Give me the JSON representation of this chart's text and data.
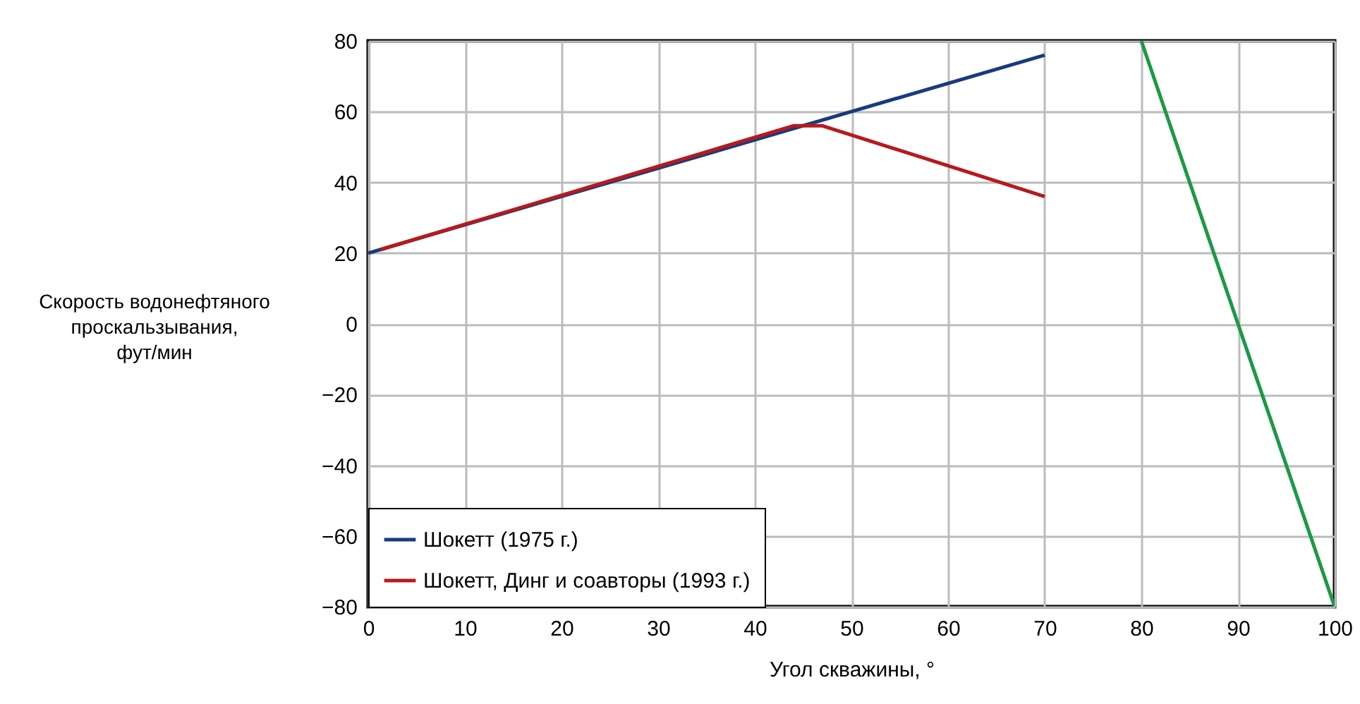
{
  "chart_data": {
    "type": "line",
    "xlabel": "Угол скважины, °",
    "ylabel": "Скорость водонефтяного проскальзывания, фут/мин",
    "xlim": [
      0,
      100
    ],
    "xticks": [
      0,
      10,
      20,
      30,
      40,
      50,
      60,
      70,
      80,
      90,
      100
    ],
    "ylim": [
      -80,
      80
    ],
    "yticks": [
      -80,
      -60,
      -40,
      -20,
      0,
      20,
      40,
      60,
      80
    ],
    "grid": true,
    "legend": "bottom left",
    "series": [
      {
        "name": "Шокетт (1975 г.)",
        "color": "#1a3a7e",
        "x": [
          0,
          70
        ],
        "values": [
          20,
          76
        ]
      },
      {
        "name": "Шокетт, Динг и соавторы (1993 г.)",
        "color": "#b8191c",
        "x": [
          1.3,
          44,
          47,
          70
        ],
        "values": [
          21,
          56,
          56,
          36
        ]
      },
      {
        "color": "#1a9a45",
        "x": [
          80,
          100
        ],
        "values": [
          80,
          -80
        ]
      }
    ]
  }
}
